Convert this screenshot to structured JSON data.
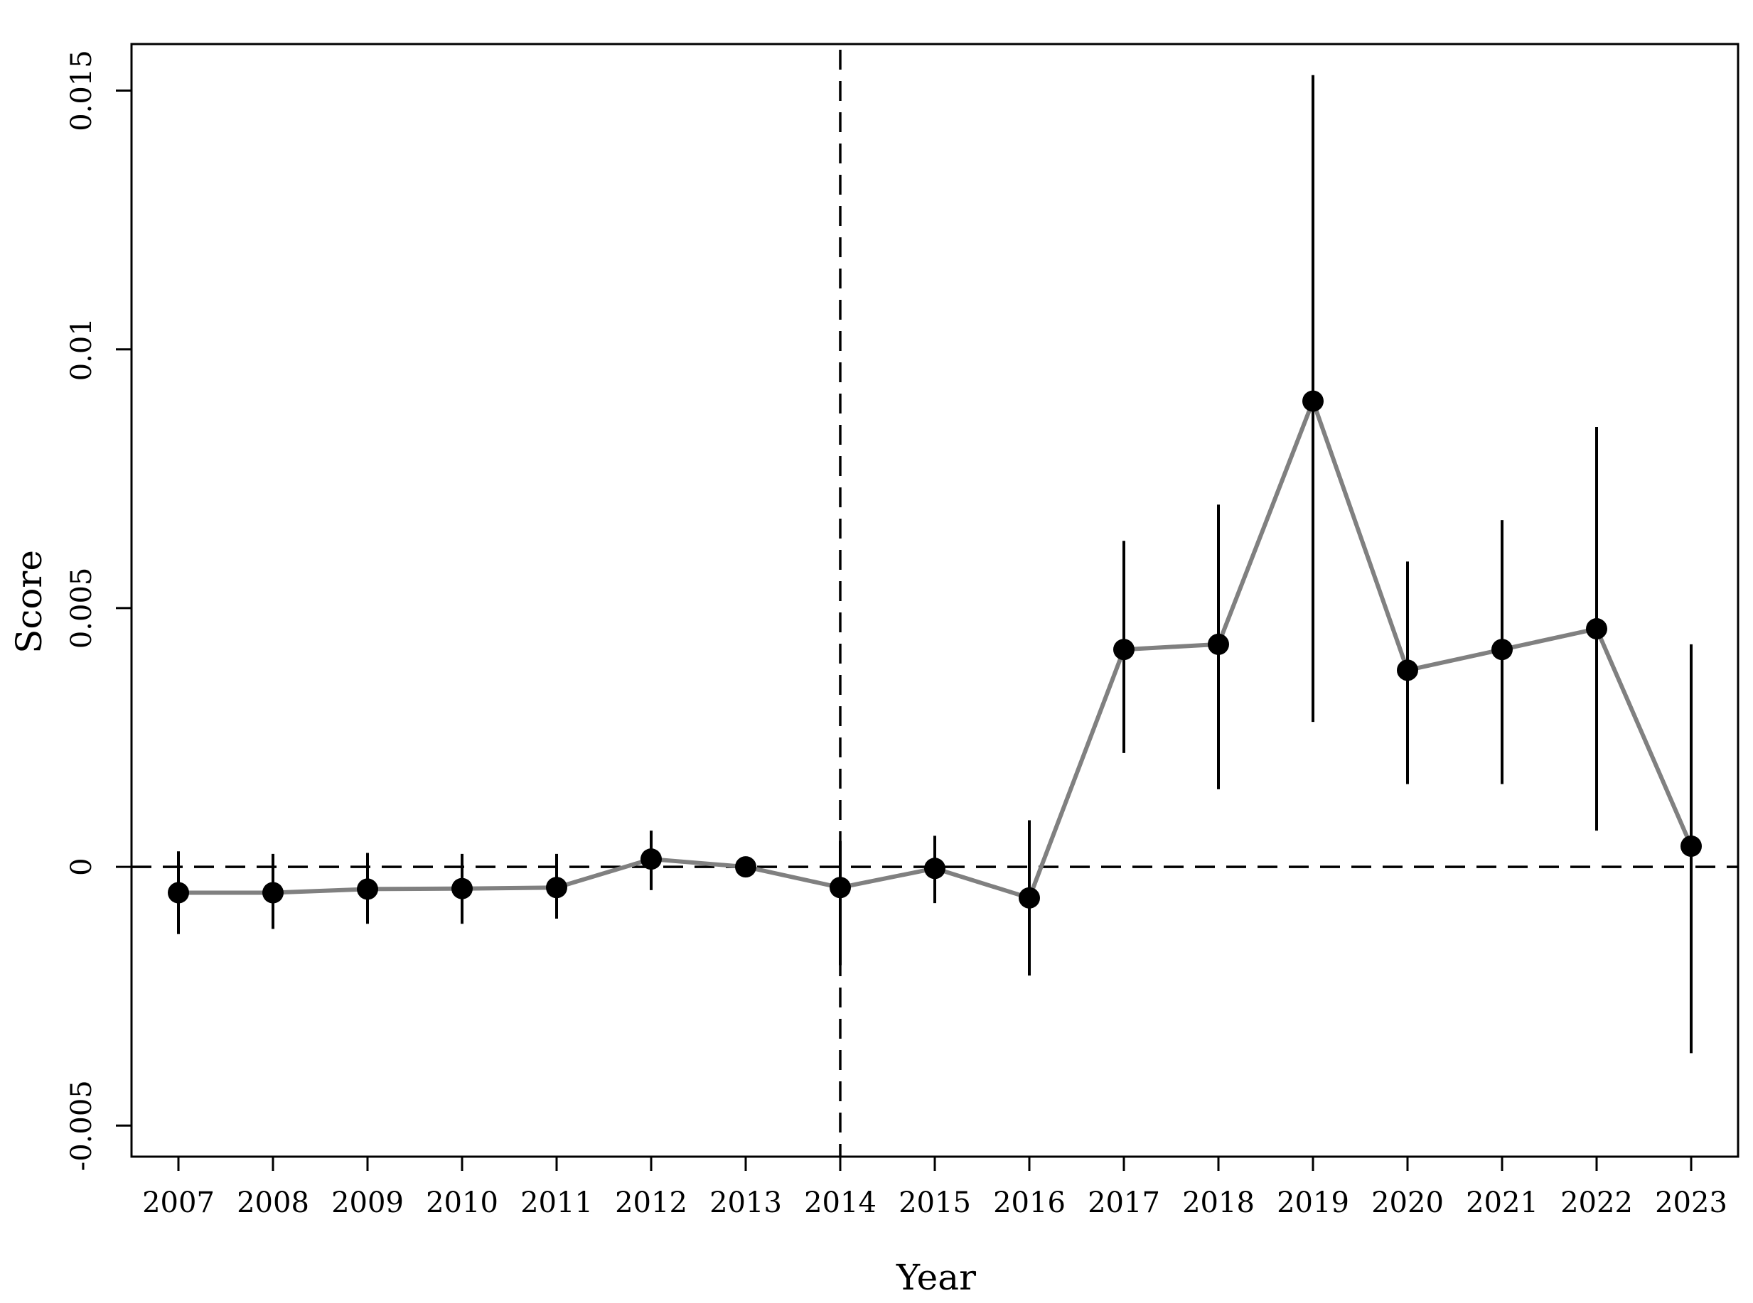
{
  "chart_data": {
    "type": "line",
    "title": "",
    "xlabel": "Year",
    "ylabel": "Score",
    "x": [
      "2007",
      "2008",
      "2009",
      "2010",
      "2011",
      "2012",
      "2013",
      "2014",
      "2015",
      "2016",
      "2017",
      "2018",
      "2019",
      "2020",
      "2021",
      "2022",
      "2023"
    ],
    "y_ticks": [
      "-0.005",
      "0",
      "0.005",
      "0.01",
      "0.015"
    ],
    "y_tick_values": [
      -0.005,
      0,
      0.005,
      0.01,
      0.015
    ],
    "ylim": [
      -0.0056,
      0.0159
    ],
    "series": [
      {
        "estimate": [
          -0.0005,
          -0.0005,
          -0.00043,
          -0.00042,
          -0.0004,
          0.00015,
          0.0,
          -0.0004,
          -3e-05,
          -0.0006,
          0.0042,
          0.0043,
          0.009,
          0.0038,
          0.0042,
          0.0046,
          0.0004
        ],
        "ci_low": [
          -0.0013,
          -0.0012,
          -0.0011,
          -0.0011,
          -0.001,
          -0.00045,
          0.0,
          -0.0019,
          -0.0007,
          -0.0021,
          0.0022,
          0.0015,
          0.0028,
          0.0016,
          0.0016,
          0.0007,
          -0.0036
        ],
        "ci_high": [
          0.0003,
          0.00025,
          0.00027,
          0.00025,
          0.00025,
          0.0007,
          0.0,
          0.0005,
          0.0006,
          0.0009,
          0.0063,
          0.007,
          0.0153,
          0.0059,
          0.0067,
          0.0085,
          0.0043
        ]
      }
    ],
    "reference_lines": {
      "horizontal_y": 0,
      "vertical_x": "2014"
    },
    "grid": false,
    "colors": {
      "line": "#808080",
      "point": "#000000",
      "error_bar": "#000000",
      "reference": "#000000",
      "axis": "#000000"
    }
  }
}
